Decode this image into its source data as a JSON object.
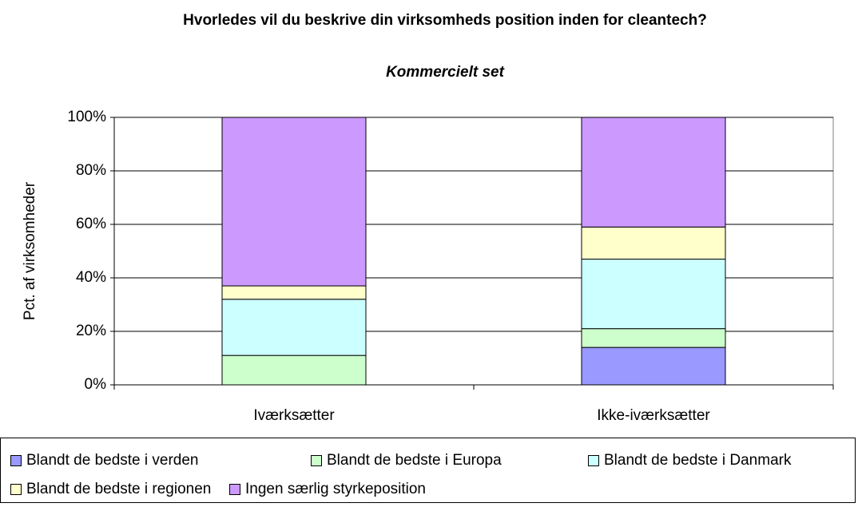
{
  "chart_data": {
    "type": "stacked_bar",
    "title": "Hvorledes vil du beskrive din virksomheds position inden for cleantech?",
    "subtitle": "Kommercielt set",
    "y_label": "Pct. af virksomheder",
    "categories": [
      "Iværksætter",
      "Ikke-iværksætter"
    ],
    "series": [
      {
        "name": "Blandt de bedste i verden",
        "color": "#9999ff",
        "values": [
          0,
          14
        ]
      },
      {
        "name": "Blandt de bedste i Europa",
        "color": "#ccffcc",
        "values": [
          11,
          7
        ]
      },
      {
        "name": "Blandt de bedste i Danmark",
        "color": "#ccffff",
        "values": [
          21,
          26
        ]
      },
      {
        "name": "Blandt de bedste i regionen",
        "color": "#ffffcc",
        "values": [
          5,
          12
        ]
      },
      {
        "name": "Ingen særlig styrkeposition",
        "color": "#cc99ff",
        "values": [
          63,
          41
        ]
      }
    ],
    "ylim": [
      0,
      100
    ],
    "yticks": [
      {
        "value": 0,
        "label": "0%"
      },
      {
        "value": 20,
        "label": "20%"
      },
      {
        "value": 40,
        "label": "40%"
      },
      {
        "value": 60,
        "label": "60%"
      },
      {
        "value": 80,
        "label": "80%"
      },
      {
        "value": 100,
        "label": "100%"
      }
    ],
    "grid": true,
    "legend": "bottom"
  }
}
